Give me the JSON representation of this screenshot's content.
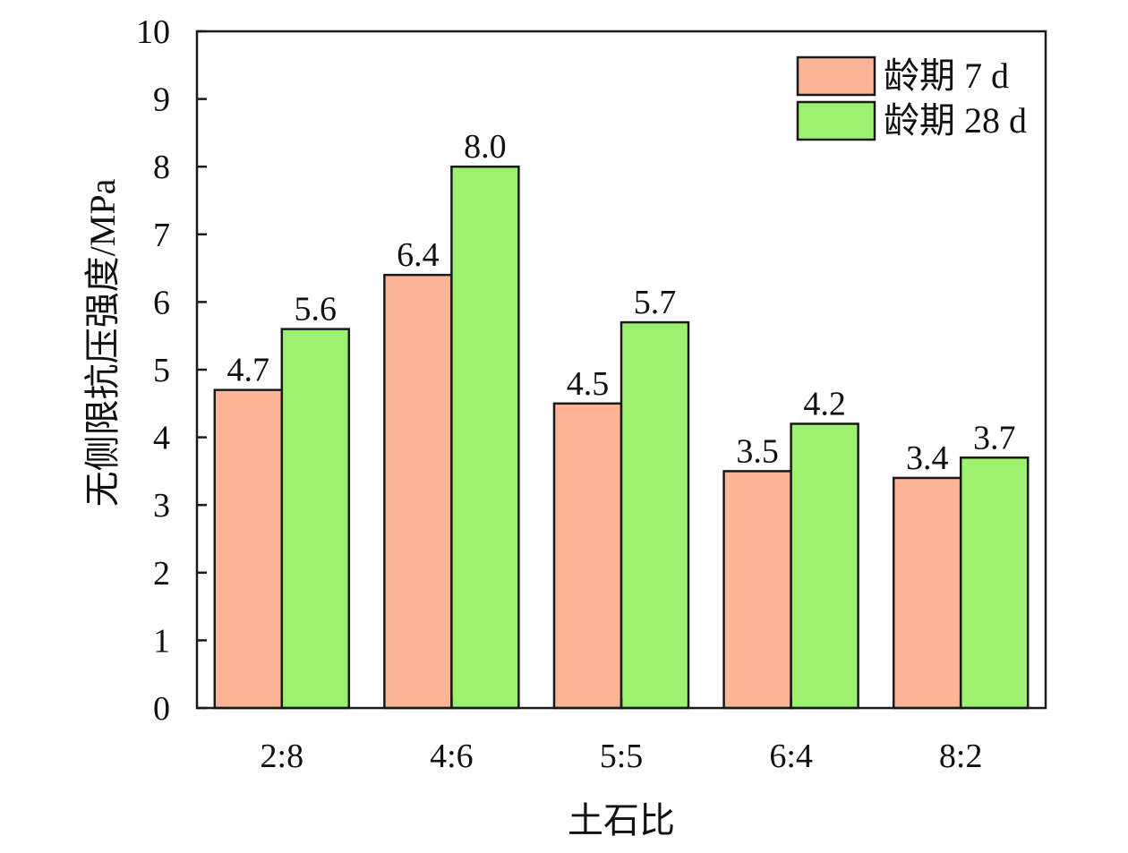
{
  "chart_data": {
    "type": "bar",
    "title": "",
    "xlabel": "土石比",
    "ylabel": "无侧限抗压强度/MPa",
    "categories": [
      "2:8",
      "4:6",
      "5:5",
      "6:4",
      "8:2"
    ],
    "series": [
      {
        "name": "龄期 7 d",
        "values": [
          4.7,
          6.4,
          4.5,
          3.5,
          3.4
        ],
        "labels": [
          "4.7",
          "6.4",
          "4.5",
          "3.5",
          "3.4"
        ],
        "color": "#FDB497"
      },
      {
        "name": "龄期 28 d",
        "values": [
          5.6,
          8.0,
          5.7,
          4.2,
          3.7
        ],
        "labels": [
          "5.6",
          "8.0",
          "5.7",
          "4.2",
          "3.7"
        ],
        "color": "#9CF26E"
      }
    ],
    "ylim": [
      0,
      10
    ],
    "yticks": [
      0,
      1,
      2,
      3,
      4,
      5,
      6,
      7,
      8,
      9,
      10
    ],
    "grid": false,
    "legend": "top-right",
    "bar_edge_color": "#1a1a1a"
  }
}
